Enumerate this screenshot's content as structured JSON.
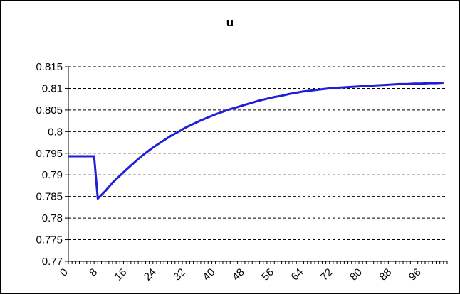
{
  "chart_data": {
    "type": "line",
    "title": "u",
    "xlabel": "",
    "ylabel": "",
    "xlim": [
      0,
      103
    ],
    "ylim": [
      0.77,
      0.815
    ],
    "y_tick_labels": [
      "0.77",
      "0.775",
      "0.78",
      "0.785",
      "0.79",
      "0.795",
      "0.8",
      "0.805",
      "0.81",
      "0.815"
    ],
    "x_tick_labels": [
      "0",
      "8",
      "16",
      "24",
      "32",
      "40",
      "48",
      "56",
      "64",
      "72",
      "80",
      "88",
      "96"
    ],
    "grid": "horizontal dashed",
    "legend": "none",
    "line_color": "#1f1fd6",
    "series": [
      {
        "x": [
          0,
          2,
          4,
          6,
          7,
          8,
          10,
          12,
          14,
          16,
          18,
          20,
          22,
          24,
          26,
          28,
          30,
          32,
          34,
          36,
          38,
          40,
          42,
          44,
          46,
          48,
          50,
          52,
          54,
          56,
          58,
          60,
          62,
          64,
          66,
          68,
          70,
          72,
          74,
          76,
          78,
          80,
          82,
          84,
          86,
          88,
          90,
          92,
          94,
          96,
          98,
          100,
          102
        ],
        "y": [
          0.7943,
          0.7943,
          0.7943,
          0.7943,
          0.7943,
          0.7845,
          0.7862,
          0.7882,
          0.7898,
          0.7914,
          0.7929,
          0.7944,
          0.7957,
          0.7969,
          0.798,
          0.7991,
          0.8,
          0.801,
          0.8018,
          0.8026,
          0.8033,
          0.804,
          0.8046,
          0.8052,
          0.8057,
          0.8062,
          0.8067,
          0.8072,
          0.8076,
          0.808,
          0.8083,
          0.8087,
          0.809,
          0.8093,
          0.8095,
          0.8097,
          0.8099,
          0.8101,
          0.8102,
          0.8103,
          0.8104,
          0.8105,
          0.8106,
          0.8107,
          0.8108,
          0.8109,
          0.811,
          0.811,
          0.8111,
          0.8111,
          0.8112,
          0.8112,
          0.8113
        ]
      }
    ]
  }
}
